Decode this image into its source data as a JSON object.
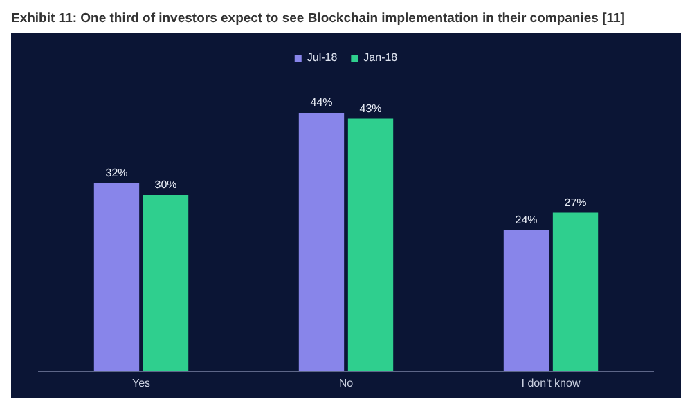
{
  "chart_data": {
    "type": "bar",
    "title": "Exhibit 11: One third of investors expect to see Blockchain implementation in their companies [11]",
    "categories": [
      "Yes",
      "No",
      "I don't know"
    ],
    "series": [
      {
        "name": "Jul-18",
        "color": "#8885ea",
        "values": [
          32,
          44,
          24
        ],
        "value_labels": [
          "32%",
          "44%",
          "24%"
        ]
      },
      {
        "name": "Jan-18",
        "color": "#2fcf8e",
        "values": [
          30,
          43,
          27
        ],
        "value_labels": [
          "30%",
          "43%",
          "27%"
        ]
      }
    ],
    "legend": "top",
    "grid": false
  }
}
